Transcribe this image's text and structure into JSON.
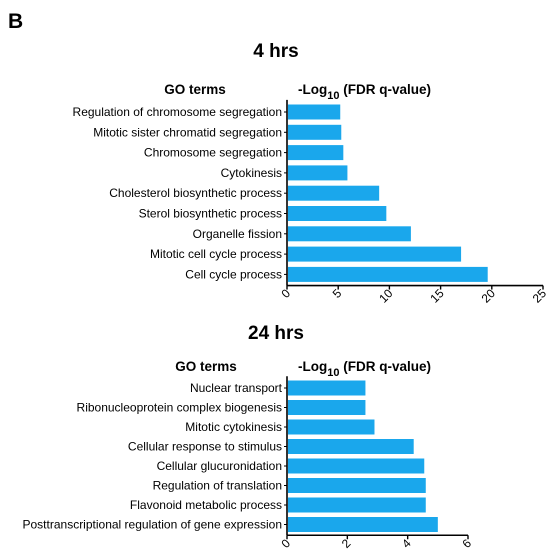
{
  "panel_label": "B",
  "chart_data": [
    {
      "type": "bar",
      "orientation": "horizontal",
      "title": "4 hrs",
      "category_header": "GO terms",
      "value_header": {
        "prefix": "-Log",
        "subscript": "10",
        "suffix": " (FDR q-value)"
      },
      "categories": [
        "Regulation of chromosome segregation",
        "Mitotic sister chromatid segregation",
        "Chromosome segregation",
        "Cytokinesis",
        "Cholesterol biosynthetic process",
        "Sterol biosynthetic process",
        "Organelle fission",
        "Mitotic cell cycle process",
        "Cell cycle process"
      ],
      "values": [
        5.2,
        5.3,
        5.5,
        5.9,
        9.0,
        9.7,
        12.1,
        17.0,
        19.6
      ],
      "xlim": [
        0,
        25
      ],
      "xticks": [
        0,
        5,
        10,
        15,
        20,
        25
      ],
      "xtick_labels": [
        "0",
        "5",
        "10",
        "15",
        "20",
        "25"
      ],
      "bar_color": "#1aa7ec",
      "grid": false
    },
    {
      "type": "bar",
      "orientation": "horizontal",
      "title": "24 hrs",
      "category_header": "GO terms",
      "value_header": {
        "prefix": "-Log",
        "subscript": "10",
        "suffix": " (FDR q-value)"
      },
      "categories": [
        "Nuclear transport",
        "Ribonucleoprotein complex biogenesis",
        "Mitotic cytokinesis",
        "Cellular response to stimulus",
        "Cellular glucuronidation",
        "Regulation of translation",
        "Flavonoid metabolic process",
        "Posttranscriptional regulation of gene expression"
      ],
      "values": [
        2.6,
        2.6,
        2.9,
        4.2,
        4.55,
        4.6,
        4.6,
        5.0
      ],
      "xlim": [
        0,
        6
      ],
      "xticks": [
        0,
        2,
        4,
        6
      ],
      "xtick_labels": [
        "0",
        "2",
        "4",
        "6"
      ],
      "bar_color": "#1aa7ec",
      "grid": false
    }
  ]
}
